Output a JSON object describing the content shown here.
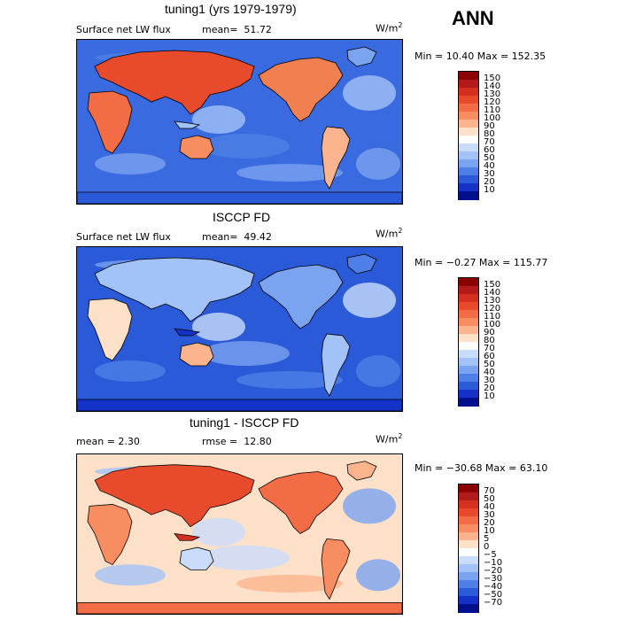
{
  "season": "ANN",
  "panels": [
    {
      "title": "tuning1 (yrs 1979-1979)",
      "left_label": "Surface net LW flux",
      "stat_label": "mean=",
      "stat_value": "51.72",
      "units": "W/m",
      "units_sup": "2",
      "minmax": "Min =  10.40 Max = 152.35",
      "colorbar": {
        "labels": [
          "150",
          "140",
          "130",
          "120",
          "110",
          "100",
          "90",
          "80",
          "70",
          "60",
          "50",
          "40",
          "30",
          "20",
          "10"
        ],
        "colors": [
          "#8b0000",
          "#b31b1b",
          "#d43020",
          "#e84a2c",
          "#f26c45",
          "#f98d62",
          "#fbb48d",
          "#fde0c8",
          "#ffffff",
          "#c9dcfb",
          "#a3c2f7",
          "#7aa3f0",
          "#4e7fe6",
          "#2a5ad8",
          "#1432c8",
          "#00108c"
        ]
      },
      "palette": "warm"
    },
    {
      "title": "ISCCP FD",
      "left_label": "Surface net LW flux",
      "stat_label": "mean=",
      "stat_value": "49.42",
      "units": "W/m",
      "units_sup": "2",
      "minmax": "Min =  −0.27 Max = 115.77",
      "colorbar": {
        "labels": [
          "150",
          "140",
          "130",
          "120",
          "110",
          "100",
          "90",
          "80",
          "70",
          "60",
          "50",
          "40",
          "30",
          "20",
          "10"
        ],
        "colors": [
          "#8b0000",
          "#b31b1b",
          "#d43020",
          "#e84a2c",
          "#f26c45",
          "#f98d62",
          "#fbb48d",
          "#fde0c8",
          "#ffffff",
          "#c9dcfb",
          "#a3c2f7",
          "#7aa3f0",
          "#4e7fe6",
          "#2a5ad8",
          "#1432c8",
          "#00108c"
        ]
      },
      "palette": "cool"
    },
    {
      "title": "tuning1 - ISCCP FD",
      "left_label": "mean =    2.30",
      "stat_label": "rmse =",
      "stat_value": "12.80",
      "units": "W/m",
      "units_sup": "2",
      "minmax": "Min = −30.68 Max =  63.10",
      "colorbar": {
        "labels": [
          "70",
          "50",
          "40",
          "30",
          "20",
          "10",
          "5",
          "0",
          "−5",
          "−10",
          "−20",
          "−30",
          "−40",
          "−50",
          "−70"
        ],
        "colors": [
          "#8b0000",
          "#b31b1b",
          "#d43020",
          "#e84a2c",
          "#f26c45",
          "#f98d62",
          "#fbb48d",
          "#fde0c8",
          "#ffffff",
          "#c9dcfb",
          "#a3c2f7",
          "#7aa3f0",
          "#4e7fe6",
          "#2a5ad8",
          "#1432c8",
          "#00108c"
        ]
      },
      "palette": "diff"
    }
  ]
}
